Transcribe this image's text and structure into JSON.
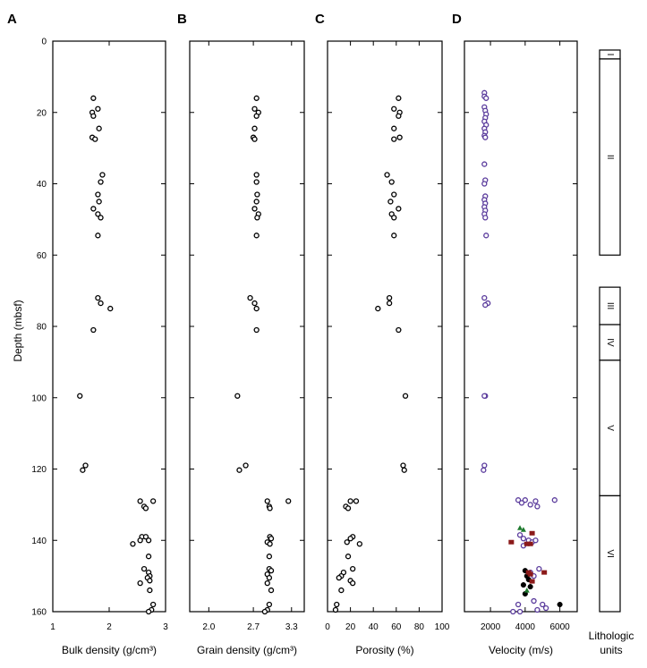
{
  "chart_data": [
    {
      "panel": "A",
      "type": "scatter",
      "xlabel": "Bulk density (g/cm³)",
      "ylabel": "Depth (mbsf)",
      "xlim": [
        1,
        3
      ],
      "ylim": [
        160,
        0
      ],
      "xticks": [
        "1",
        "2",
        "3"
      ],
      "yticks": [
        "0",
        "20",
        "40",
        "60",
        "80",
        "100",
        "120",
        "140",
        "160"
      ],
      "points": [
        [
          1.72,
          16
        ],
        [
          1.8,
          19
        ],
        [
          1.7,
          20
        ],
        [
          1.72,
          21
        ],
        [
          1.82,
          24.5
        ],
        [
          1.7,
          27
        ],
        [
          1.75,
          27.5
        ],
        [
          1.88,
          37.5
        ],
        [
          1.85,
          39.5
        ],
        [
          1.8,
          43
        ],
        [
          1.82,
          45
        ],
        [
          1.72,
          47
        ],
        [
          1.8,
          48.5
        ],
        [
          1.85,
          49.5
        ],
        [
          1.8,
          54.5
        ],
        [
          1.8,
          72
        ],
        [
          1.85,
          73.5
        ],
        [
          2.02,
          75
        ],
        [
          1.72,
          81
        ],
        [
          1.48,
          99.5
        ],
        [
          1.58,
          119
        ],
        [
          1.53,
          120.3
        ],
        [
          2.55,
          129
        ],
        [
          2.78,
          129
        ],
        [
          2.62,
          130.5
        ],
        [
          2.65,
          131
        ],
        [
          2.58,
          139
        ],
        [
          2.65,
          139
        ],
        [
          2.55,
          140
        ],
        [
          2.7,
          140
        ],
        [
          2.42,
          141
        ],
        [
          2.7,
          144.5
        ],
        [
          2.62,
          148
        ],
        [
          2.7,
          149
        ],
        [
          2.72,
          150
        ],
        [
          2.68,
          150.5
        ],
        [
          2.72,
          151.3
        ],
        [
          2.55,
          152
        ],
        [
          2.72,
          154
        ],
        [
          2.78,
          158
        ],
        [
          2.75,
          159.5
        ],
        [
          2.7,
          160
        ]
      ]
    },
    {
      "panel": "B",
      "type": "scatter",
      "xlabel": "Grain density (g/cm³)",
      "xlim": [
        1.7,
        3.5
      ],
      "xticks": [
        "2.0",
        "2.7",
        "3.3"
      ],
      "points": [
        [
          2.75,
          16
        ],
        [
          2.72,
          19
        ],
        [
          2.78,
          20
        ],
        [
          2.75,
          21
        ],
        [
          2.72,
          24.5
        ],
        [
          2.7,
          27
        ],
        [
          2.72,
          27.5
        ],
        [
          2.75,
          37.5
        ],
        [
          2.75,
          39.5
        ],
        [
          2.76,
          43
        ],
        [
          2.75,
          45
        ],
        [
          2.72,
          47
        ],
        [
          2.78,
          48.5
        ],
        [
          2.76,
          49.5
        ],
        [
          2.75,
          54.5
        ],
        [
          2.65,
          72
        ],
        [
          2.72,
          73.5
        ],
        [
          2.75,
          75
        ],
        [
          2.75,
          81
        ],
        [
          2.45,
          99.5
        ],
        [
          2.58,
          119
        ],
        [
          2.48,
          120.3
        ],
        [
          2.92,
          129
        ],
        [
          3.25,
          129
        ],
        [
          2.95,
          130.5
        ],
        [
          2.96,
          131
        ],
        [
          2.96,
          139
        ],
        [
          2.98,
          139.5
        ],
        [
          2.92,
          140.5
        ],
        [
          2.96,
          141
        ],
        [
          2.95,
          144.5
        ],
        [
          2.95,
          148
        ],
        [
          2.98,
          148.5
        ],
        [
          2.92,
          149.5
        ],
        [
          2.95,
          150.5
        ],
        [
          2.92,
          152
        ],
        [
          2.98,
          154
        ],
        [
          2.95,
          158
        ],
        [
          2.92,
          159.5
        ],
        [
          2.88,
          160
        ]
      ]
    },
    {
      "panel": "C",
      "type": "scatter",
      "xlabel": "Porosity (%)",
      "xlim": [
        0,
        100
      ],
      "xticks": [
        "0",
        "20",
        "40",
        "60",
        "80",
        "100"
      ],
      "points": [
        [
          62,
          16
        ],
        [
          58,
          19
        ],
        [
          63,
          20
        ],
        [
          62,
          21
        ],
        [
          58,
          24.5
        ],
        [
          63,
          27
        ],
        [
          58,
          27.5
        ],
        [
          52,
          37.5
        ],
        [
          56,
          39.5
        ],
        [
          58,
          43
        ],
        [
          55,
          45
        ],
        [
          62,
          47
        ],
        [
          56,
          48.5
        ],
        [
          58,
          49.5
        ],
        [
          58,
          54.5
        ],
        [
          54,
          72
        ],
        [
          54,
          73.5
        ],
        [
          44,
          75
        ],
        [
          62,
          81
        ],
        [
          68,
          99.5
        ],
        [
          66,
          119
        ],
        [
          67,
          120.3
        ],
        [
          20,
          129
        ],
        [
          25,
          129
        ],
        [
          16,
          130.5
        ],
        [
          18,
          131
        ],
        [
          22,
          139
        ],
        [
          20,
          139.5
        ],
        [
          17,
          140.5
        ],
        [
          28,
          141
        ],
        [
          18,
          144.5
        ],
        [
          22,
          148
        ],
        [
          14,
          149
        ],
        [
          12,
          150
        ],
        [
          10,
          150.5
        ],
        [
          20,
          151.3
        ],
        [
          22,
          152
        ],
        [
          12,
          154
        ],
        [
          8,
          158
        ],
        [
          7,
          159.5
        ]
      ]
    },
    {
      "panel": "D",
      "type": "scatter",
      "xlabel": "Velocity (m/s)",
      "xlim": [
        500,
        7000
      ],
      "xticks": [
        "2000",
        "4000",
        "6000"
      ],
      "series": [
        {
          "color": "#5a3b9c",
          "marker": "open-circle",
          "points": [
            [
              1650,
              14.5
            ],
            [
              1650,
              15.5
            ],
            [
              1750,
              16
            ],
            [
              1650,
              18.5
            ],
            [
              1700,
              19.5
            ],
            [
              1750,
              20.5
            ],
            [
              1700,
              21.5
            ],
            [
              1650,
              22.5
            ],
            [
              1750,
              23.5
            ],
            [
              1650,
              24.5
            ],
            [
              1700,
              25.5
            ],
            [
              1650,
              26.5
            ],
            [
              1700,
              27
            ],
            [
              1650,
              34.5
            ],
            [
              1700,
              39
            ],
            [
              1650,
              40
            ],
            [
              1700,
              43.5
            ],
            [
              1650,
              44.5
            ],
            [
              1700,
              45.5
            ],
            [
              1650,
              46.5
            ],
            [
              1700,
              47.5
            ],
            [
              1650,
              48.5
            ],
            [
              1700,
              49.5
            ],
            [
              1750,
              54.5
            ],
            [
              1650,
              72
            ],
            [
              1850,
              73.5
            ],
            [
              1700,
              74
            ],
            [
              1700,
              99.5
            ],
            [
              1650,
              99.5
            ],
            [
              1650,
              119
            ],
            [
              1600,
              120.3
            ],
            [
              3600,
              128.7
            ],
            [
              4000,
              128.7
            ],
            [
              4600,
              129
            ],
            [
              5700,
              128.7
            ],
            [
              3800,
              129.5
            ],
            [
              4300,
              130
            ],
            [
              4700,
              130.5
            ],
            [
              3700,
              138.5
            ],
            [
              3900,
              139.5
            ],
            [
              4200,
              140
            ],
            [
              4400,
              140.5
            ],
            [
              3900,
              141.5
            ],
            [
              4600,
              140
            ],
            [
              4800,
              148
            ],
            [
              4300,
              149
            ],
            [
              4500,
              150
            ],
            [
              3600,
              158
            ],
            [
              4500,
              157
            ],
            [
              5000,
              158
            ],
            [
              5200,
              159
            ],
            [
              4700,
              159.5
            ],
            [
              3300,
              160
            ],
            [
              3700,
              160
            ]
          ]
        },
        {
          "color": "#000000",
          "marker": "filled-circle",
          "points": [
            [
              4000,
              148.5
            ],
            [
              4100,
              150
            ],
            [
              4200,
              151
            ],
            [
              3900,
              152.5
            ],
            [
              4300,
              153
            ],
            [
              4000,
              155
            ],
            [
              6000,
              158
            ]
          ]
        },
        {
          "color": "#8b1a1a",
          "marker": "filled-square",
          "points": [
            [
              3200,
              140.5
            ],
            [
              4100,
              141
            ],
            [
              4300,
              141
            ],
            [
              4400,
              138
            ],
            [
              4200,
              149
            ],
            [
              4300,
              149.5
            ],
            [
              5100,
              149
            ],
            [
              4400,
              151.5
            ]
          ]
        },
        {
          "color": "#1e7a2e",
          "marker": "filled-triangle",
          "points": [
            [
              3700,
              136.5
            ],
            [
              3900,
              137
            ],
            [
              4100,
              154
            ]
          ]
        }
      ]
    }
  ],
  "lithology": {
    "label_line1": "Lithologic",
    "label_line2": "units",
    "units": [
      {
        "name": "I",
        "top": 2.5,
        "bottom": 5
      },
      {
        "name": "II",
        "top": 5,
        "bottom": 60
      },
      {
        "name": "III",
        "top": 69,
        "bottom": 79.5
      },
      {
        "name": "IV",
        "top": 79.5,
        "bottom": 89.5
      },
      {
        "name": "V",
        "top": 89.5,
        "bottom": 127.5
      },
      {
        "name": "VI",
        "top": 127.5,
        "bottom": 160
      }
    ]
  }
}
